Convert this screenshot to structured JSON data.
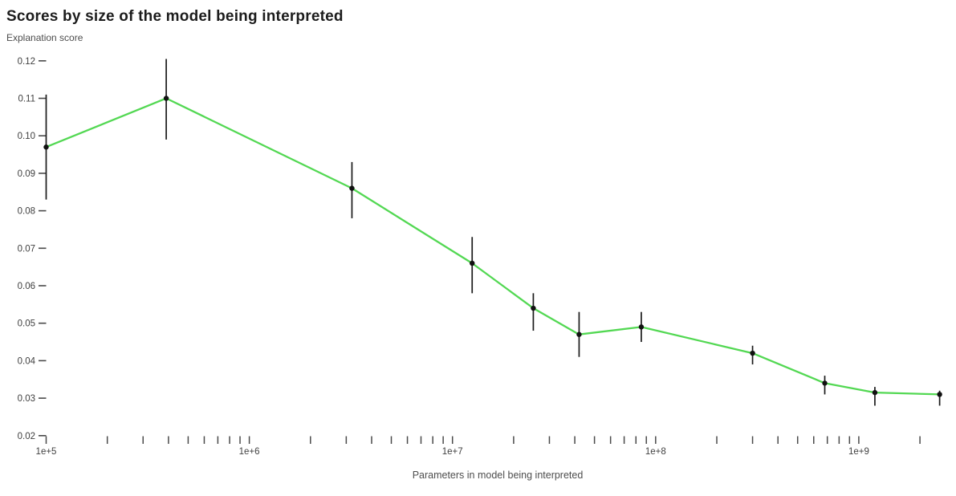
{
  "header": {
    "title": "Scores by size of the model being interpreted",
    "subtitle": "Explanation score"
  },
  "x_axis_caption": "Parameters in model being interpreted",
  "colors": {
    "line": "#53d853",
    "marker": "#111111",
    "error_bar": "#1a1a1a",
    "tick": "#4a4a4a",
    "axis_text": "#3f3f3f",
    "title_text": "#1c1c1c",
    "background": "#ffffff"
  },
  "chart_data": {
    "type": "line",
    "title": "Scores by size of the model being interpreted",
    "xlabel": "Parameters in model being interpreted",
    "ylabel": "Explanation score",
    "x_scale": "log",
    "xlim": [
      100000,
      3000000000
    ],
    "ylim": [
      0.02,
      0.12
    ],
    "grid": false,
    "legend": false,
    "y_ticks": [
      0.02,
      0.03,
      0.04,
      0.05,
      0.06,
      0.07,
      0.08,
      0.09,
      0.1,
      0.11,
      0.12
    ],
    "y_tick_labels": [
      "0.02",
      "0.03",
      "0.04",
      "0.05",
      "0.06",
      "0.07",
      "0.08",
      "0.09",
      "0.10",
      "0.11",
      "0.12"
    ],
    "x_tick_labels": [
      "1e+5",
      "1e+6",
      "1e+7",
      "1e+8",
      "1e+9"
    ],
    "x_tick_values": [
      100000,
      1000000,
      10000000,
      100000000,
      1000000000
    ],
    "series": [
      {
        "name": "Explanation score",
        "marker": "point-with-error-bar",
        "x": [
          100000,
          390000,
          3200000,
          12500000,
          25000000,
          42000000,
          85000000,
          300000000,
          680000000,
          1200000000,
          2500000000
        ],
        "y": [
          0.097,
          0.11,
          0.086,
          0.066,
          0.054,
          0.047,
          0.049,
          0.042,
          0.034,
          0.0315,
          0.031
        ],
        "y_err_low": [
          0.083,
          0.099,
          0.078,
          0.058,
          0.048,
          0.041,
          0.045,
          0.039,
          0.031,
          0.028,
          0.028
        ],
        "y_err_high": [
          0.111,
          0.1205,
          0.093,
          0.073,
          0.058,
          0.053,
          0.053,
          0.044,
          0.036,
          0.033,
          0.032
        ]
      }
    ]
  }
}
